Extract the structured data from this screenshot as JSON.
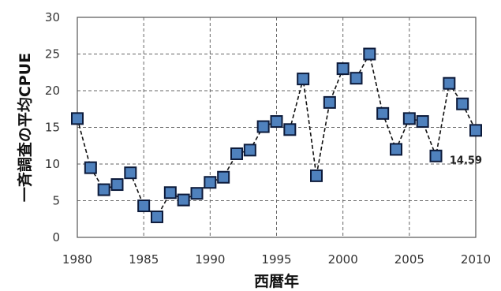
{
  "chart_data": {
    "type": "line",
    "xlabel": "西暦年",
    "ylabel": "一斉調査の平均CPUE",
    "xlim": [
      1980,
      2010
    ],
    "ylim": [
      0,
      30
    ],
    "xticks": [
      "1980",
      "1985",
      "1990",
      "1995",
      "2000",
      "2005",
      "2010"
    ],
    "yticks": [
      "0",
      "5",
      "10",
      "15",
      "20",
      "25",
      "30"
    ],
    "grid": true,
    "marker": "square",
    "line_style": "dashed",
    "colors": {
      "marker_fill": "#4f81bd",
      "marker_edge": "#0c1a3a",
      "line": "#111111"
    },
    "series": [
      {
        "x": [
          1980,
          1981,
          1982,
          1983,
          1984,
          1985,
          1986,
          1987,
          1988,
          1989,
          1990,
          1991,
          1992,
          1993,
          1994,
          1995,
          1996,
          1997,
          1998,
          1999,
          2000,
          2001,
          2002,
          2003,
          2004,
          2005,
          2006,
          2007,
          2008,
          2009,
          2010
        ],
        "y": [
          16.2,
          9.5,
          6.5,
          7.2,
          8.8,
          4.3,
          2.8,
          6.1,
          5.1,
          6.0,
          7.5,
          8.2,
          11.4,
          11.9,
          15.1,
          15.8,
          14.7,
          21.6,
          8.4,
          18.4,
          23.0,
          21.7,
          25.0,
          16.9,
          12.0,
          16.2,
          15.8,
          11.1,
          21.0,
          18.2,
          14.59
        ]
      }
    ],
    "annotations": [
      {
        "x": 2010,
        "y": 14.59,
        "text": "14.59"
      }
    ]
  }
}
